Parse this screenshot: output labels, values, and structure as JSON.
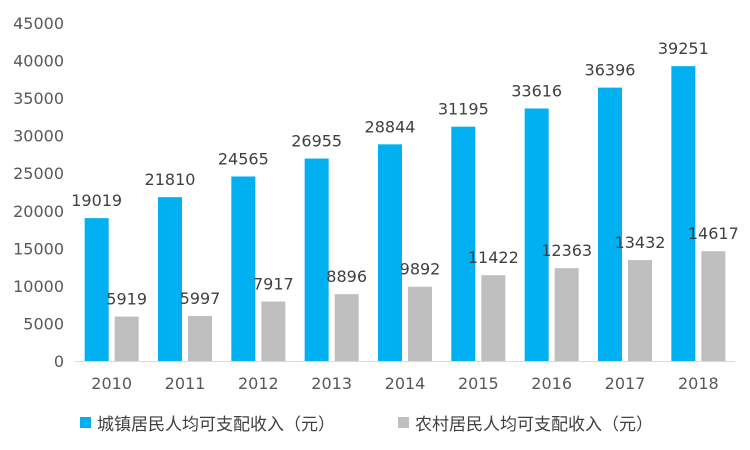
{
  "chart_data": {
    "type": "bar",
    "categories": [
      "2010",
      "2011",
      "2012",
      "2013",
      "2014",
      "2015",
      "2016",
      "2017",
      "2018"
    ],
    "series": [
      {
        "name": "城镇居民人均可支配收入（元）",
        "color": "#00B0F0",
        "values": [
          19019,
          21810,
          24565,
          26955,
          28844,
          31195,
          33616,
          36396,
          39251
        ]
      },
      {
        "name": "农村居民人均可支配收入（元）",
        "color": "#BFBFBF",
        "values": [
          5919,
          5997,
          7917,
          8896,
          9892,
          11422,
          12363,
          13432,
          14617
        ]
      }
    ],
    "ylim": [
      0,
      45000
    ],
    "yticks": [
      0,
      5000,
      10000,
      15000,
      20000,
      25000,
      30000,
      35000,
      40000,
      45000
    ],
    "grid": false,
    "legend": "bottom"
  }
}
